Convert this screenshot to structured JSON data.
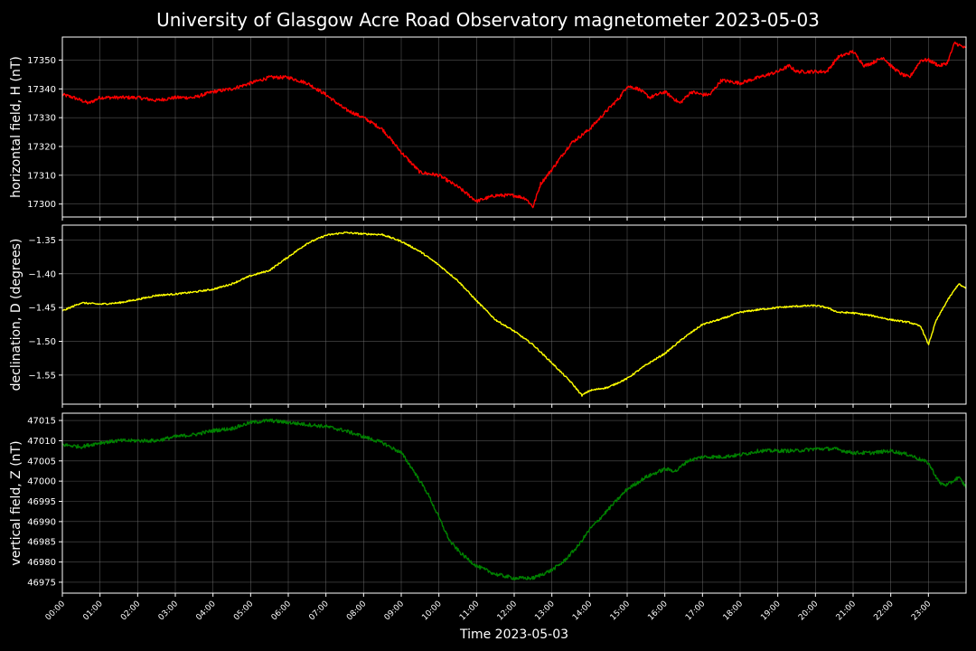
{
  "chart_data": {
    "type": "line",
    "title": "University of Glasgow Acre Road Observatory magnetometer 2023-05-03",
    "xlabel": "Time 2023-05-03",
    "x_ticks": [
      "00:00",
      "01:00",
      "02:00",
      "03:00",
      "04:00",
      "05:00",
      "06:00",
      "07:00",
      "08:00",
      "09:00",
      "10:00",
      "11:00",
      "12:00",
      "13:00",
      "14:00",
      "15:00",
      "16:00",
      "17:00",
      "18:00",
      "19:00",
      "20:00",
      "21:00",
      "22:00",
      "23:00"
    ],
    "xlim": [
      0,
      24
    ],
    "grid": true,
    "panels": [
      {
        "name": "horizontal",
        "ylabel": "horizontal field, H (nT)",
        "color": "#ff0000",
        "ylim": [
          17295.5,
          17358
        ],
        "yticks": [
          17300,
          17310,
          17320,
          17330,
          17340,
          17350
        ],
        "ytick_labels": [
          "17300",
          "17310",
          "17320",
          "17330",
          "17340",
          "17350"
        ],
        "noise": 0.6,
        "x": [
          0,
          0.3,
          0.7,
          1.0,
          1.5,
          2.0,
          2.5,
          3.0,
          3.5,
          4.0,
          4.5,
          5.0,
          5.5,
          6.0,
          6.5,
          7.0,
          7.5,
          8.0,
          8.5,
          9.0,
          9.5,
          10.0,
          10.5,
          10.8,
          11.0,
          11.5,
          12.0,
          12.3,
          12.5,
          12.7,
          13.0,
          13.5,
          14.0,
          14.5,
          14.8,
          15.0,
          15.3,
          15.6,
          16.0,
          16.4,
          16.7,
          17.0,
          17.2,
          17.5,
          18.0,
          18.5,
          19.0,
          19.3,
          19.5,
          20.0,
          20.3,
          20.6,
          21.0,
          21.3,
          21.5,
          21.8,
          22.0,
          22.3,
          22.5,
          22.8,
          23.0,
          23.3,
          23.5,
          23.7,
          24.0
        ],
        "y": [
          17338,
          17337,
          17335,
          17337,
          17337,
          17337,
          17336,
          17337,
          17337,
          17339,
          17340,
          17342,
          17344,
          17344,
          17342,
          17338,
          17333,
          17330,
          17326,
          17318,
          17311,
          17310,
          17306,
          17303,
          17301,
          17303,
          17303,
          17302,
          17299,
          17307,
          17312,
          17321,
          17326,
          17333,
          17337,
          17341,
          17340,
          17337,
          17339,
          17335,
          17339,
          17338,
          17338,
          17343,
          17342,
          17344,
          17346,
          17348,
          17346,
          17346,
          17346,
          17351,
          17353,
          17348,
          17349,
          17351,
          17348,
          17345,
          17344,
          17350,
          17350,
          17348,
          17349,
          17356,
          17354
        ]
      },
      {
        "name": "declination",
        "ylabel": "declination, D (degrees)",
        "color": "#ffff00",
        "ylim": [
          -1.593,
          -1.328
        ],
        "yticks": [
          -1.55,
          -1.5,
          -1.45,
          -1.4,
          -1.35
        ],
        "ytick_labels": [
          "−1.55",
          "−1.50",
          "−1.45",
          "−1.40",
          "−1.35"
        ],
        "noise": 0.0012,
        "x": [
          0,
          0.5,
          1.0,
          1.5,
          2.0,
          2.5,
          3.0,
          3.5,
          4.0,
          4.5,
          5.0,
          5.5,
          6.0,
          6.5,
          7.0,
          7.5,
          8.0,
          8.5,
          9.0,
          9.5,
          10.0,
          10.5,
          11.0,
          11.5,
          12.0,
          12.5,
          13.0,
          13.5,
          13.8,
          14.0,
          14.5,
          15.0,
          15.5,
          16.0,
          16.5,
          17.0,
          17.5,
          18.0,
          18.5,
          19.0,
          19.5,
          20.0,
          20.3,
          20.6,
          21.0,
          21.5,
          22.0,
          22.5,
          22.8,
          23.0,
          23.2,
          23.5,
          23.8,
          24.0
        ],
        "y": [
          -1.455,
          -1.443,
          -1.445,
          -1.443,
          -1.438,
          -1.432,
          -1.43,
          -1.427,
          -1.423,
          -1.415,
          -1.403,
          -1.395,
          -1.375,
          -1.355,
          -1.343,
          -1.339,
          -1.341,
          -1.342,
          -1.352,
          -1.367,
          -1.387,
          -1.41,
          -1.44,
          -1.468,
          -1.485,
          -1.505,
          -1.532,
          -1.56,
          -1.58,
          -1.573,
          -1.568,
          -1.555,
          -1.535,
          -1.518,
          -1.495,
          -1.475,
          -1.467,
          -1.457,
          -1.453,
          -1.45,
          -1.448,
          -1.447,
          -1.45,
          -1.457,
          -1.458,
          -1.462,
          -1.468,
          -1.472,
          -1.478,
          -1.505,
          -1.47,
          -1.44,
          -1.415,
          -1.422
        ]
      },
      {
        "name": "vertical",
        "ylabel": "vertical field, Z (nT)",
        "color": "#008000",
        "ylim": [
          46972.3,
          47016.8
        ],
        "yticks": [
          46975,
          46980,
          46985,
          46990,
          46995,
          47000,
          47005,
          47010,
          47015
        ],
        "ytick_labels": [
          "46975",
          "46980",
          "46985",
          "46990",
          "46995",
          "47000",
          "47005",
          "47010",
          "47015"
        ],
        "noise": 0.45,
        "x": [
          0,
          0.5,
          1.0,
          1.5,
          2.0,
          2.5,
          3.0,
          3.5,
          4.0,
          4.5,
          5.0,
          5.5,
          6.0,
          6.5,
          7.0,
          7.5,
          8.0,
          8.5,
          9.0,
          9.3,
          9.7,
          10.0,
          10.3,
          10.6,
          11.0,
          11.5,
          12.0,
          12.5,
          13.0,
          13.3,
          13.7,
          14.0,
          14.5,
          15.0,
          15.5,
          16.0,
          16.3,
          16.6,
          17.0,
          17.5,
          18.0,
          18.5,
          19.0,
          19.5,
          20.0,
          20.5,
          21.0,
          21.5,
          22.0,
          22.5,
          23.0,
          23.3,
          23.5,
          23.8,
          24.0
        ],
        "y": [
          47009,
          47008.5,
          47009.5,
          47010,
          47010,
          47010,
          47011,
          47011.5,
          47012.5,
          47013,
          47014.5,
          47015,
          47014.5,
          47014,
          47013.5,
          47012.5,
          47011,
          47009.5,
          47007,
          47003,
          46997,
          46991,
          46985,
          46982,
          46979,
          46977,
          46976,
          46976,
          46978,
          46980,
          46984,
          46988,
          46993,
          46998,
          47001,
          47003,
          47002.5,
          47005,
          47006,
          47006,
          47006.5,
          47007.5,
          47007.5,
          47007.5,
          47008,
          47008,
          47007,
          47007,
          47007.5,
          47006.5,
          47004.5,
          46999.5,
          46999,
          47001,
          46998.5
        ]
      }
    ]
  }
}
